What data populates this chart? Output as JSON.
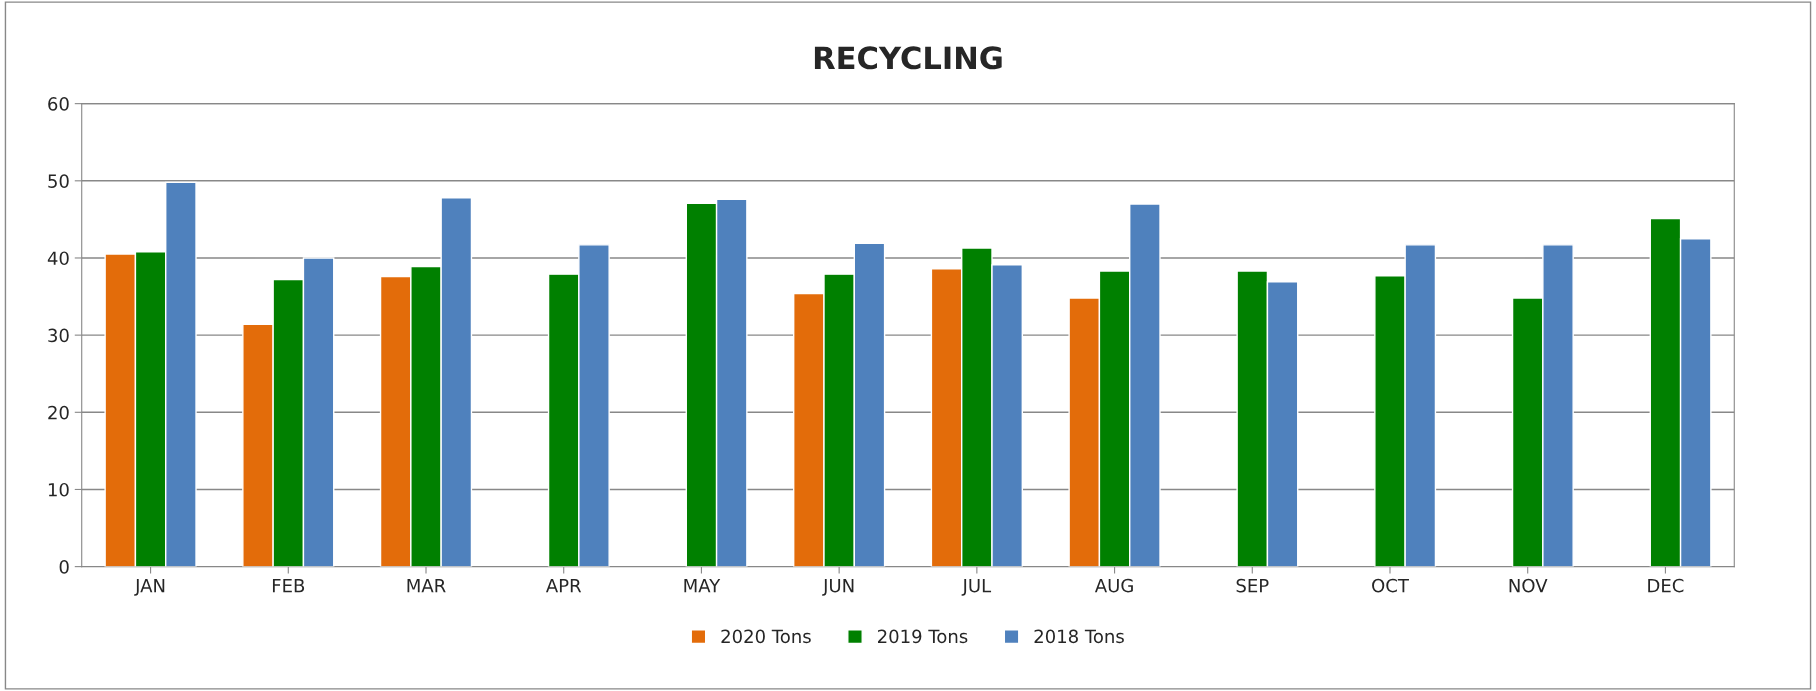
{
  "chart_data": {
    "type": "bar",
    "title": "RECYCLING",
    "categories": [
      "JAN",
      "FEB",
      "MAR",
      "APR",
      "MAY",
      "JUN",
      "JUL",
      "AUG",
      "SEP",
      "OCT",
      "NOV",
      "DEC"
    ],
    "series": [
      {
        "name": "2020 Tons",
        "color": "#e36c0a",
        "values": [
          40.5,
          31.4,
          37.6,
          null,
          null,
          35.4,
          38.6,
          34.8,
          null,
          null,
          null,
          null
        ]
      },
      {
        "name": "2019 Tons",
        "color": "#008000",
        "values": [
          40.8,
          37.2,
          38.9,
          37.9,
          47.1,
          37.9,
          41.3,
          38.3,
          38.3,
          37.7,
          34.8,
          45.1
        ]
      },
      {
        "name": "2018 Tons",
        "color": "#4f81bd",
        "values": [
          49.8,
          40.0,
          47.8,
          41.7,
          47.6,
          41.9,
          39.1,
          47.0,
          36.9,
          41.7,
          41.7,
          42.5
        ]
      }
    ],
    "ylim": [
      0,
      60
    ],
    "yticks": [
      0,
      10,
      20,
      30,
      40,
      50,
      60
    ],
    "grid": "y",
    "legend": "bottom"
  }
}
